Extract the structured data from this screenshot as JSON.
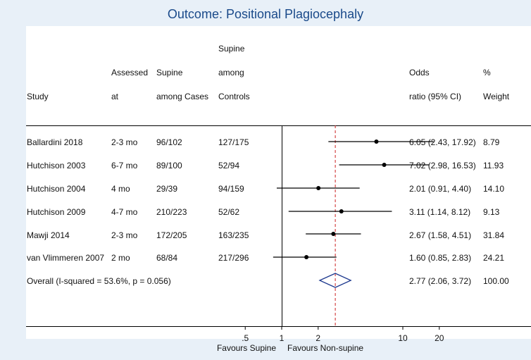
{
  "title": "Outcome: Positional Plagiocephaly",
  "headers": {
    "study": "Study",
    "assessed": [
      "Assessed",
      "at"
    ],
    "supine_cases": [
      "Supine",
      "among Cases"
    ],
    "supine_controls": [
      "Supine",
      "among",
      "Controls"
    ],
    "or": [
      "Odds",
      "ratio (95% CI)"
    ],
    "weight": [
      "%",
      "Weight"
    ]
  },
  "colors": {
    "title": "#1a4a8a",
    "diamond": "#1f3a8f",
    "null_line": "#cc2222"
  },
  "chart_data": {
    "type": "forest",
    "x_scale": "log",
    "x_ticks": [
      ".5",
      "1",
      "2",
      "10",
      "20"
    ],
    "x_tick_values": [
      0.5,
      1,
      2,
      10,
      20
    ],
    "xlabel_left": "Favours Supine",
    "xlabel_right": "Favours Non-supine",
    "pooled_estimate": 2.77,
    "rows": [
      {
        "study": "Ballardini 2018",
        "assessed": "2-3 mo",
        "cases": "96/102",
        "controls": "127/175",
        "or": 6.05,
        "lo": 2.43,
        "hi": 17.92,
        "or_text": "6.05 (2.43, 17.92)",
        "weight": "8.79"
      },
      {
        "study": "Hutchison 2003",
        "assessed": "6-7 mo",
        "cases": "89/100",
        "controls": "52/94",
        "or": 7.02,
        "lo": 2.98,
        "hi": 16.53,
        "or_text": "7.02 (2.98, 16.53)",
        "weight": "11.93"
      },
      {
        "study": "Hutchison 2004",
        "assessed": "4 mo",
        "cases": "29/39",
        "controls": "94/159",
        "or": 2.01,
        "lo": 0.91,
        "hi": 4.4,
        "or_text": "2.01 (0.91, 4.40)",
        "weight": "14.10"
      },
      {
        "study": "Hutchison 2009",
        "assessed": "4-7 mo",
        "cases": "210/223",
        "controls": "52/62",
        "or": 3.11,
        "lo": 1.14,
        "hi": 8.12,
        "or_text": "3.11 (1.14, 8.12)",
        "weight": "9.13"
      },
      {
        "study": "Mawji 2014",
        "assessed": "2-3 mo",
        "cases": "172/205",
        "controls": "163/235",
        "or": 2.67,
        "lo": 1.58,
        "hi": 4.51,
        "or_text": "2.67 (1.58, 4.51)",
        "weight": "31.84"
      },
      {
        "study": "van Vlimmeren 2007",
        "assessed": "2 mo",
        "cases": "68/84",
        "controls": "217/296",
        "or": 1.6,
        "lo": 0.85,
        "hi": 2.83,
        "or_text": "1.60 (0.85, 2.83)",
        "weight": "24.21"
      }
    ],
    "overall": {
      "label": "Overall  (I-squared = 53.6%, p = 0.056)",
      "or": 2.77,
      "lo": 2.06,
      "hi": 3.72,
      "or_text": "2.77 (2.06, 3.72)",
      "weight": "100.00"
    }
  }
}
